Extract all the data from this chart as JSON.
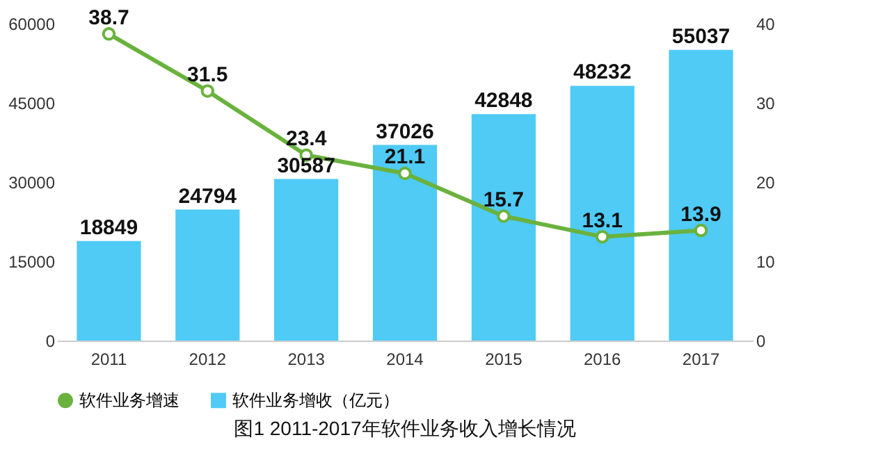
{
  "chart_data": {
    "type": "bar",
    "title": "图1 2011-2017年软件业务收入增长情况",
    "categories": [
      "2011",
      "2012",
      "2013",
      "2014",
      "2015",
      "2016",
      "2017"
    ],
    "series": [
      {
        "name": "软件业务增速",
        "type": "line",
        "axis": "y2",
        "color": "#6ab23e",
        "marker": "circle",
        "values": [
          38.7,
          31.5,
          23.4,
          21.1,
          15.7,
          13.1,
          13.9
        ]
      },
      {
        "name": "软件业务增收（亿元）",
        "color": "#4fcbf6",
        "values": [
          18849,
          24794,
          30587,
          37026,
          42848,
          48232,
          55037
        ]
      }
    ],
    "ylim": [
      0,
      60000
    ],
    "yticks": [
      0,
      15000,
      30000,
      45000,
      60000
    ],
    "y2lim": [
      0,
      40
    ],
    "y2ticks": [
      0,
      10,
      20,
      30,
      40
    ],
    "data_labels": true,
    "legend": "bottom"
  }
}
